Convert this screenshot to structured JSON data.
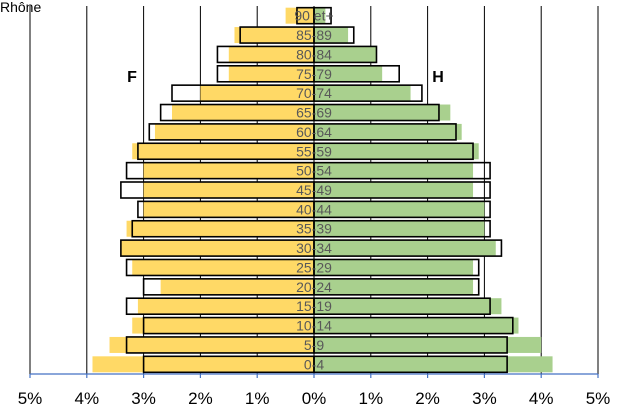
{
  "chart_data": {
    "type": "bar",
    "orientation": "horizontal",
    "subtype": "population-pyramid",
    "title": "Rhône",
    "left_label": "F",
    "right_label": "H",
    "categories": [
      "0-4",
      "5-9",
      "10-14",
      "15-19",
      "20-24",
      "25-29",
      "30-34",
      "35-39",
      "40-44",
      "45-49",
      "50-54",
      "55-59",
      "60-64",
      "65-69",
      "70-74",
      "75-79",
      "80-84",
      "85-89",
      "90 et+"
    ],
    "series": [
      {
        "side": "left",
        "style": "filled",
        "color": "#FFD966",
        "values": [
          3.9,
          3.6,
          3.2,
          3.1,
          2.7,
          3.2,
          3.4,
          3.3,
          3.0,
          3.0,
          3.0,
          3.2,
          2.8,
          2.5,
          2.0,
          1.5,
          1.5,
          1.4,
          0.5
        ]
      },
      {
        "side": "right",
        "style": "filled",
        "color": "#A9D08E",
        "values": [
          4.2,
          4.0,
          3.6,
          3.3,
          2.8,
          2.8,
          3.2,
          3.0,
          3.0,
          2.8,
          2.8,
          2.9,
          2.6,
          2.4,
          1.7,
          1.2,
          1.1,
          0.6,
          0.2
        ]
      },
      {
        "side": "left",
        "style": "outline",
        "color": "#000000",
        "values": [
          3.0,
          3.3,
          3.0,
          3.3,
          3.0,
          3.3,
          3.4,
          3.2,
          3.1,
          3.4,
          3.3,
          3.1,
          2.9,
          2.7,
          2.5,
          1.7,
          1.7,
          1.3,
          0.3
        ]
      },
      {
        "side": "right",
        "style": "outline",
        "color": "#000000",
        "values": [
          3.4,
          3.4,
          3.5,
          3.1,
          2.9,
          2.9,
          3.3,
          3.1,
          3.1,
          3.1,
          3.1,
          2.8,
          2.5,
          2.2,
          1.9,
          1.5,
          1.1,
          0.7,
          0.3
        ]
      }
    ],
    "xlim": [
      -5,
      5
    ],
    "xtick_values": [
      -5,
      -4,
      -3,
      -2,
      -1,
      0,
      1,
      2,
      3,
      4,
      5
    ],
    "xtick_labels": [
      "5%",
      "4%",
      "3%",
      "2%",
      "1%",
      "0%",
      "1%",
      "2%",
      "3%",
      "4%",
      "5%"
    ],
    "grid": true,
    "grid_color": "#000000",
    "axis_color": "#4472C4",
    "label_color": "#595959"
  }
}
